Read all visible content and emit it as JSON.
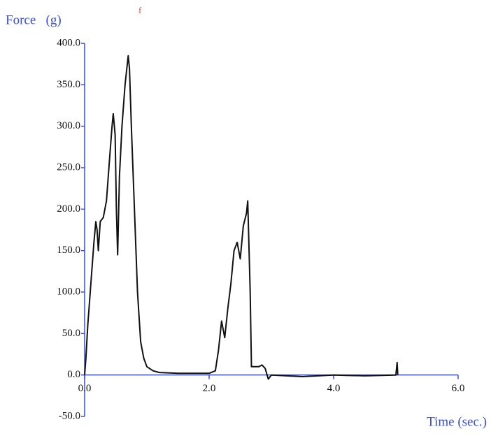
{
  "chart_data": {
    "type": "line",
    "ylabel": "Force   (g)",
    "xlabel": "Time (sec.)",
    "annotation": "f",
    "color": "#111111",
    "axis_color": "#3a4fd8",
    "xlim": [
      0,
      6
    ],
    "ylim": [
      -50,
      400
    ],
    "xticks": [
      {
        "value": 0,
        "label": "0.0"
      },
      {
        "value": 2,
        "label": "2.0"
      },
      {
        "value": 4,
        "label": "4.0"
      },
      {
        "value": 6,
        "label": "6.0"
      }
    ],
    "yticks": [
      {
        "value": -50,
        "label": "-50.0"
      },
      {
        "value": 0,
        "label": "0.0"
      },
      {
        "value": 50,
        "label": "50.0"
      },
      {
        "value": 100,
        "label": "100.0"
      },
      {
        "value": 150,
        "label": "150.0"
      },
      {
        "value": 200,
        "label": "200.0"
      },
      {
        "value": 250,
        "label": "250.0"
      },
      {
        "value": 300,
        "label": "300.0"
      },
      {
        "value": 350,
        "label": "350.0"
      },
      {
        "value": 400,
        "label": "400.0"
      }
    ],
    "x": [
      0,
      0.02,
      0.05,
      0.1,
      0.15,
      0.18,
      0.2,
      0.22,
      0.25,
      0.3,
      0.35,
      0.4,
      0.44,
      0.46,
      0.49,
      0.51,
      0.53,
      0.56,
      0.6,
      0.65,
      0.7,
      0.72,
      0.75,
      0.8,
      0.85,
      0.9,
      0.95,
      1.0,
      1.1,
      1.2,
      1.5,
      1.8,
      2.0,
      2.1,
      2.15,
      2.2,
      2.25,
      2.3,
      2.35,
      2.4,
      2.45,
      2.5,
      2.55,
      2.6,
      2.62,
      2.66,
      2.68,
      2.8,
      2.85,
      2.9,
      2.95,
      3.0,
      3.5,
      4.0,
      4.5,
      5.0,
      5.02,
      5.03
    ],
    "values": [
      0,
      20,
      60,
      110,
      160,
      185,
      175,
      150,
      185,
      190,
      210,
      260,
      300,
      315,
      290,
      200,
      145,
      240,
      300,
      350,
      385,
      370,
      300,
      200,
      100,
      40,
      20,
      10,
      5,
      3,
      2,
      2,
      2,
      5,
      30,
      65,
      45,
      80,
      110,
      150,
      160,
      140,
      180,
      195,
      210,
      100,
      10,
      10,
      12,
      8,
      -5,
      0,
      -2,
      0,
      -1,
      0,
      15,
      0
    ]
  }
}
